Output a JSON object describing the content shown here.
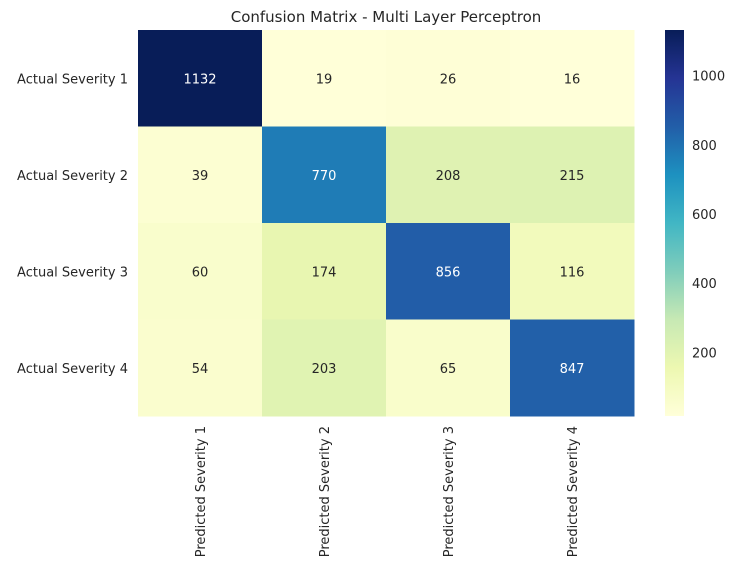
{
  "chart_data": {
    "type": "heatmap",
    "title": "Confusion Matrix - Multi Layer Perceptron",
    "xlabel": "",
    "ylabel": "",
    "x_categories": [
      "Predicted Severity 1",
      "Predicted Severity 2",
      "Predicted Severity 3",
      "Predicted Severity 4"
    ],
    "y_categories": [
      "Actual Severity 1",
      "Actual Severity 2",
      "Actual Severity 3",
      "Actual Severity 4"
    ],
    "values": [
      [
        1132,
        19,
        26,
        16
      ],
      [
        39,
        770,
        208,
        215
      ],
      [
        60,
        174,
        856,
        116
      ],
      [
        54,
        203,
        65,
        847
      ]
    ],
    "colormap": "YlGnBu",
    "vmin": 16,
    "vmax": 1132,
    "colorbar_ticks": [
      200,
      400,
      600,
      800,
      1000
    ],
    "annotated": true,
    "grid": false
  }
}
